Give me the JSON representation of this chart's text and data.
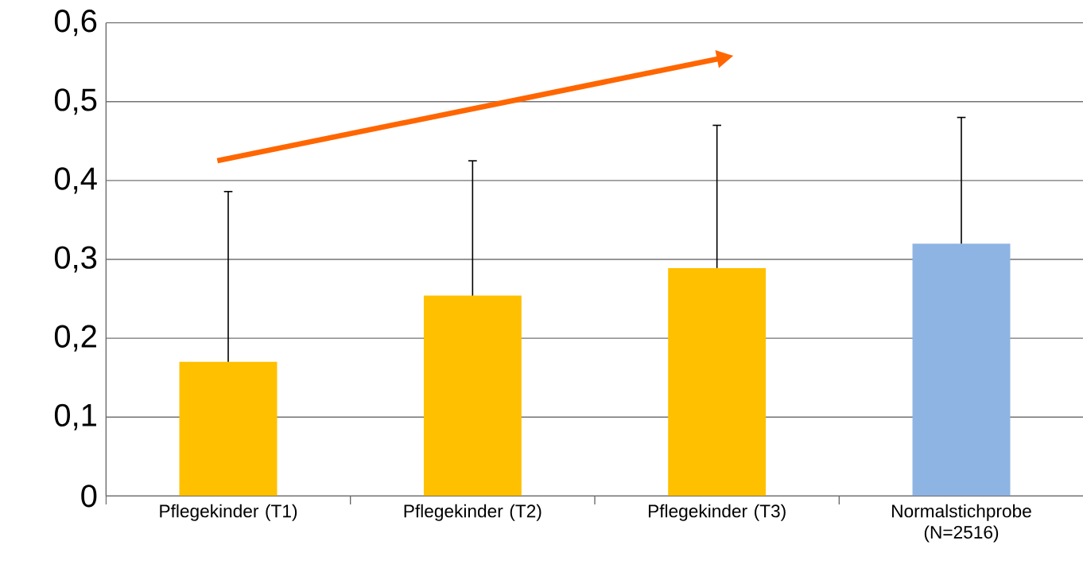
{
  "chart_data": {
    "type": "bar",
    "categories": [
      "Pflegekinder (T1)",
      "Pflegekinder (T2)",
      "Pflegekinder (T3)",
      "Normalstichprobe (N=2516)"
    ],
    "values": [
      0.17,
      0.254,
      0.289,
      0.32
    ],
    "colors": [
      "#ffc000",
      "#ffc000",
      "#ffc000",
      "#8eb4e3"
    ],
    "errors": [
      [
        0.17,
        0.386
      ],
      [
        0.254,
        0.425
      ],
      [
        0.289,
        0.47
      ],
      [
        0.32,
        0.48
      ]
    ],
    "ylim": [
      0,
      0.6
    ],
    "yticks": [
      0,
      {
        "value": 0.1,
        "label": "0,1"
      },
      {
        "value": 0.2,
        "label": "0,2"
      },
      {
        "value": 0.3,
        "label": "0,3"
      },
      {
        "value": 0.4,
        "label": "0,4"
      },
      {
        "value": 0.5,
        "label": "0,5"
      },
      {
        "value": 0.6,
        "label": "0,6"
      }
    ],
    "grid": "y"
  }
}
